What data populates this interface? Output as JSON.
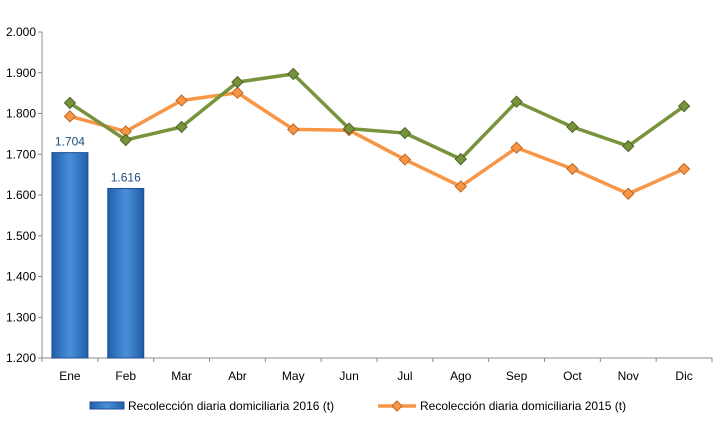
{
  "chart_data": {
    "type": "bar+line",
    "categories": [
      "Ene",
      "Feb",
      "Mar",
      "Abr",
      "May",
      "Jun",
      "Jul",
      "Ago",
      "Sep",
      "Oct",
      "Nov",
      "Dic"
    ],
    "ylim": [
      1200,
      2000
    ],
    "ytick_values": [
      1200,
      1300,
      1400,
      1500,
      1600,
      1700,
      1800,
      1900,
      2000
    ],
    "ytick_labels": [
      "1.200",
      "1.300",
      "1.400",
      "1.500",
      "1.600",
      "1.700",
      "1.800",
      "1.900",
      "2.000"
    ],
    "grid": false,
    "legend_position": "bottom",
    "bars": {
      "name": "Recolección diaria domiciliaria 2016 (t)",
      "color": "#2E75C8",
      "values": [
        1704,
        1616
      ],
      "labels": [
        "1.704",
        "1.616"
      ]
    },
    "lines": [
      {
        "name": "Recolección diaria domiciliaria 2015 (t)",
        "color": "#F79646",
        "values": [
          1793,
          1756,
          1832,
          1851,
          1761,
          1759,
          1687,
          1621,
          1716,
          1664,
          1603,
          1664
        ]
      },
      {
        "name": "",
        "color": "#77933C",
        "values": [
          1826,
          1735,
          1767,
          1877,
          1897,
          1763,
          1752,
          1688,
          1829,
          1767,
          1720,
          1818
        ]
      }
    ]
  }
}
